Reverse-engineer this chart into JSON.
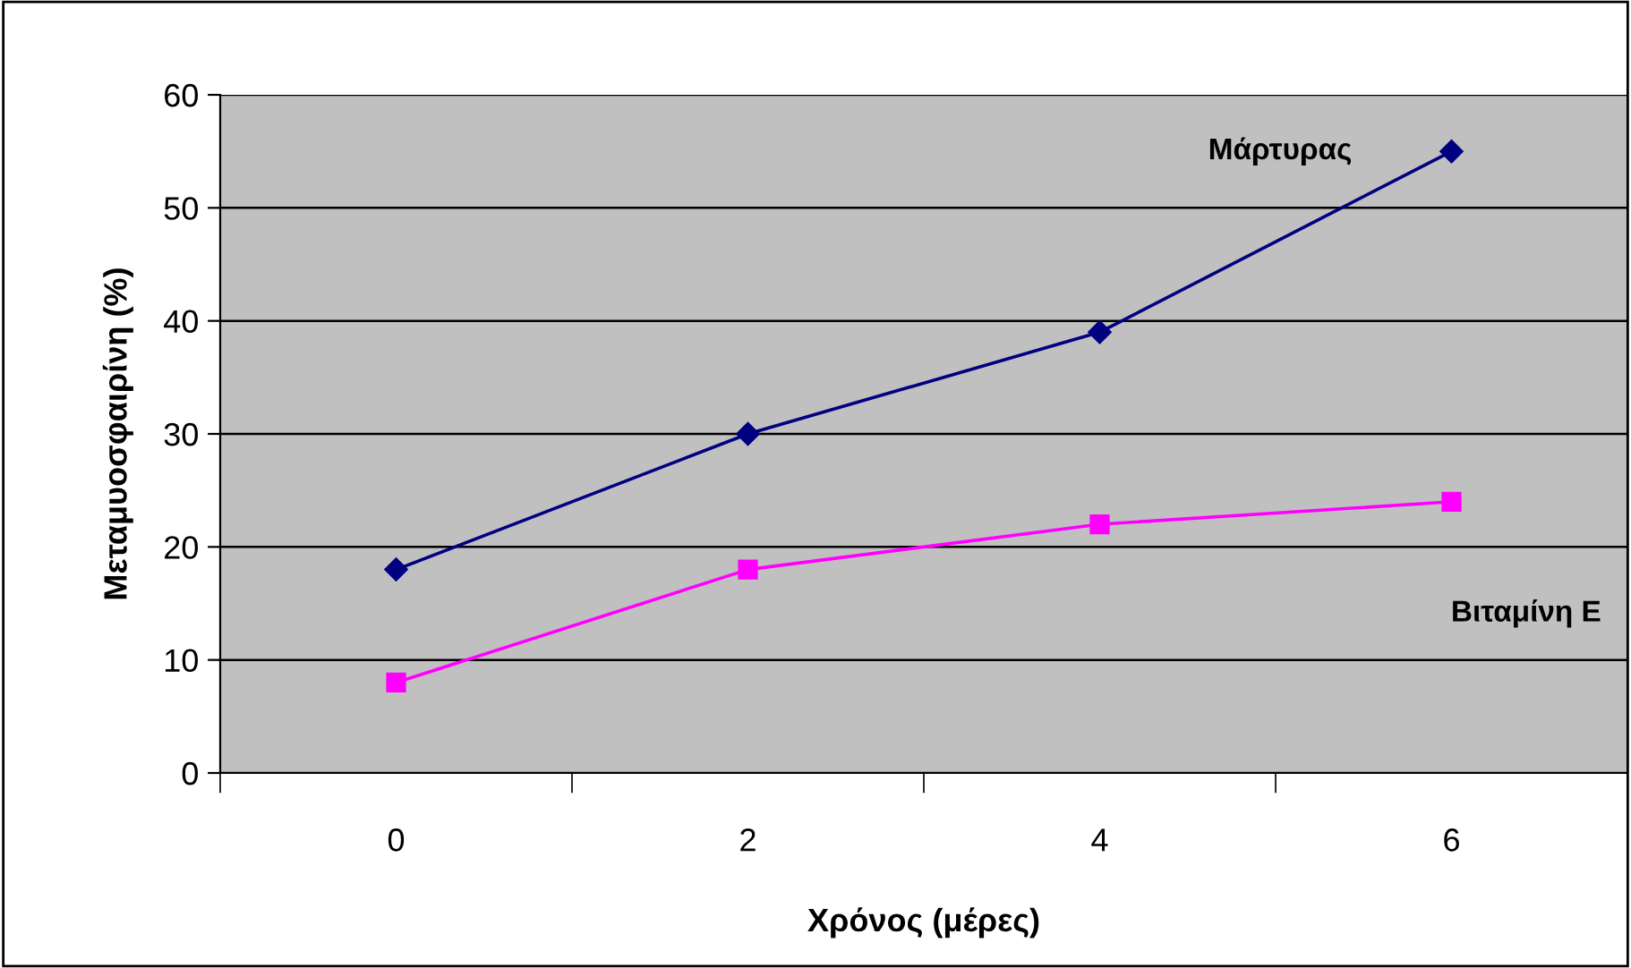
{
  "chart_data": {
    "type": "line",
    "xlabel": "Χρόνος (μέρες)",
    "ylabel": "Μεταμυοσφαιρίνη (%)",
    "categories": [
      "0",
      "2",
      "4",
      "6"
    ],
    "series": [
      {
        "name": "Μάρτυρας",
        "color": "#000080",
        "values": [
          18,
          30,
          39,
          55
        ],
        "marker": "diamond"
      },
      {
        "name": "Βιταμίνη Ε",
        "color": "#ff00ff",
        "values": [
          8,
          18,
          22,
          24
        ],
        "marker": "square"
      }
    ],
    "ylim": [
      0,
      60
    ],
    "yticks": [
      0,
      10,
      20,
      30,
      40,
      50,
      60
    ],
    "grid": "y",
    "line_style": "solid"
  }
}
